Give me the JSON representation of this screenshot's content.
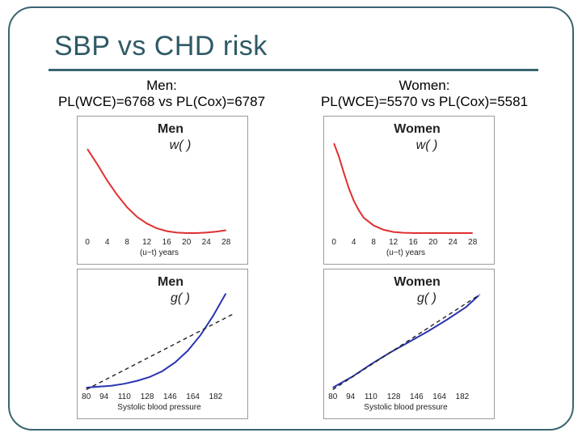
{
  "slide": {
    "title": "SBP vs CHD risk",
    "men_label": "Men:",
    "men_stats": "PL(WCE)=6768 vs PL(Cox)=6787",
    "women_label": "Women:",
    "women_stats": "PL(WCE)=5570 vs PL(Cox)=5581"
  },
  "colors": {
    "frame": "#3a6470",
    "title": "#2e5a66",
    "weight_curve": "#e03030",
    "g_curve": "#2a35b0",
    "cox_line": "#222222"
  },
  "chart_data": [
    {
      "id": "men-w",
      "type": "line",
      "title": "Men",
      "annotation": "w( )",
      "xlabel": "(u−t) years",
      "xticks": [
        0,
        4,
        8,
        12,
        16,
        20,
        24,
        28
      ],
      "xlim": [
        -1,
        30
      ],
      "ylim": [
        0,
        1
      ],
      "series": [
        {
          "name": "w",
          "color": "#e03030",
          "style": "solid",
          "x": [
            0,
            2,
            4,
            6,
            8,
            10,
            12,
            14,
            16,
            18,
            20,
            22,
            24,
            26,
            28
          ],
          "y": [
            0.88,
            0.72,
            0.55,
            0.4,
            0.27,
            0.17,
            0.1,
            0.05,
            0.02,
            0.005,
            0.0,
            0.0,
            0.005,
            0.015,
            0.03
          ]
        }
      ]
    },
    {
      "id": "women-w",
      "type": "line",
      "title": "Women",
      "annotation": "w( )",
      "xlabel": "(u−t) years",
      "xticks": [
        0,
        4,
        8,
        12,
        16,
        20,
        24,
        28
      ],
      "xlim": [
        -1,
        30
      ],
      "ylim": [
        0,
        1
      ],
      "series": [
        {
          "name": "w",
          "color": "#e03030",
          "style": "solid",
          "x": [
            0,
            1,
            2,
            3,
            4,
            5,
            6,
            8,
            10,
            12,
            14,
            16,
            18,
            20,
            24,
            28
          ],
          "y": [
            0.94,
            0.8,
            0.63,
            0.47,
            0.34,
            0.24,
            0.16,
            0.08,
            0.035,
            0.012,
            0.003,
            0.0,
            0.0,
            0.0,
            0.0,
            0.0
          ]
        }
      ]
    },
    {
      "id": "men-g",
      "type": "line",
      "title": "Men",
      "annotation": "g( )",
      "xlabel": "Systolic blood pressure",
      "xticks": [
        80,
        94,
        110,
        128,
        146,
        164,
        182
      ],
      "xlim": [
        77,
        198
      ],
      "ylim": [
        0,
        1
      ],
      "series": [
        {
          "name": "g",
          "color": "#2a35b0",
          "style": "solid",
          "x": [
            80,
            90,
            100,
            110,
            120,
            130,
            140,
            150,
            160,
            170,
            180,
            190
          ],
          "y": [
            0.0,
            0.01,
            0.02,
            0.04,
            0.07,
            0.11,
            0.17,
            0.26,
            0.38,
            0.54,
            0.74,
            0.97
          ]
        },
        {
          "name": "cox",
          "color": "#222222",
          "style": "dashed",
          "x": [
            80,
            196
          ],
          "y": [
            -0.02,
            0.76
          ]
        }
      ]
    },
    {
      "id": "women-g",
      "type": "line",
      "title": "Women",
      "annotation": "g( )",
      "xlabel": "Systolic blood pressure",
      "xticks": [
        80,
        94,
        110,
        128,
        146,
        164,
        182
      ],
      "xlim": [
        77,
        198
      ],
      "ylim": [
        0,
        1
      ],
      "series": [
        {
          "name": "g",
          "color": "#2a35b0",
          "style": "solid",
          "x": [
            80,
            95,
            110,
            125,
            140,
            155,
            170,
            185,
            195
          ],
          "y": [
            0.0,
            0.11,
            0.24,
            0.36,
            0.47,
            0.58,
            0.7,
            0.83,
            0.95
          ]
        },
        {
          "name": "cox",
          "color": "#222222",
          "style": "dashed",
          "x": [
            80,
            196
          ],
          "y": [
            -0.02,
            0.96
          ]
        }
      ]
    }
  ]
}
